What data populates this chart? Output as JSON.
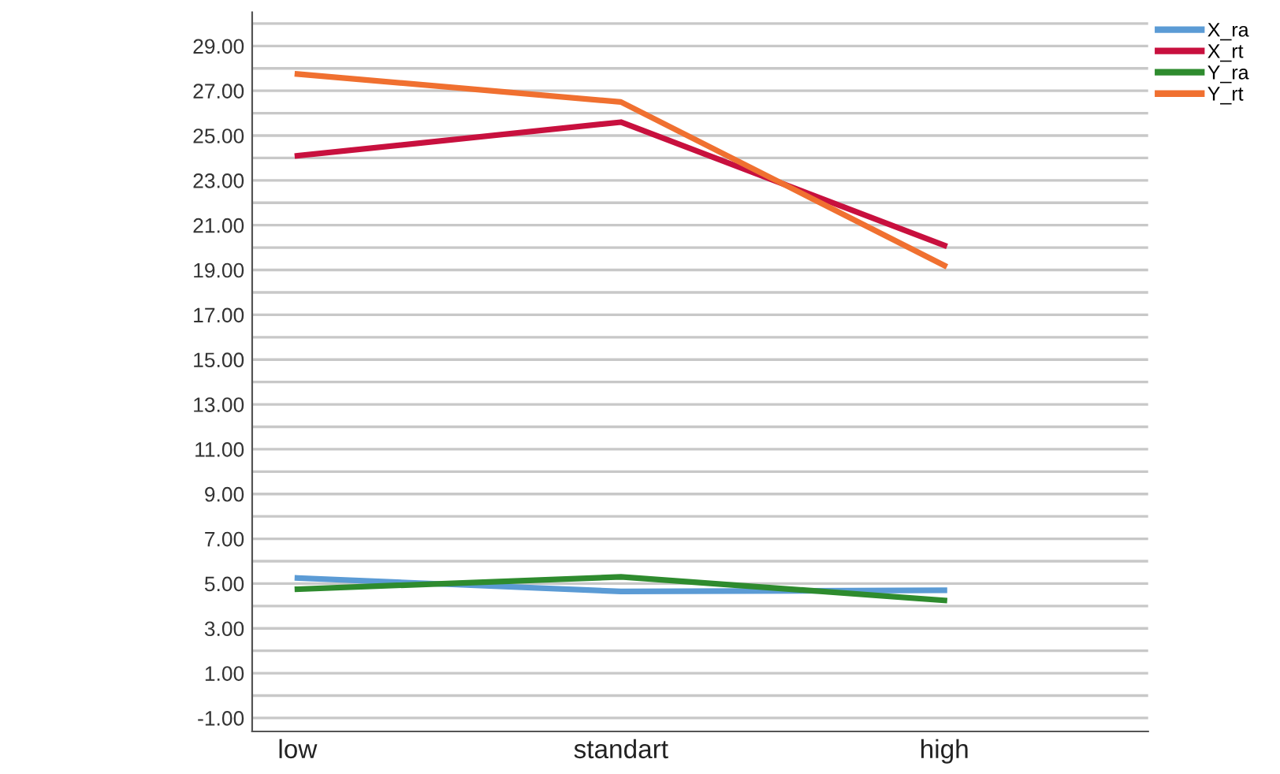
{
  "chart_data": {
    "type": "line",
    "categories": [
      "low",
      "standart",
      "high"
    ],
    "series": [
      {
        "name": "X_ra",
        "color": "#5b9bd5",
        "values": [
          5.25,
          4.65,
          4.7
        ]
      },
      {
        "name": "X_rt",
        "color": "#c8103e",
        "values": [
          24.1,
          25.6,
          20.1
        ]
      },
      {
        "name": "Y_ra",
        "color": "#2e8b2e",
        "values": [
          4.75,
          5.3,
          4.25
        ]
      },
      {
        "name": "Y_rt",
        "color": "#f07030",
        "values": [
          27.75,
          26.5,
          19.2
        ]
      }
    ],
    "ylim": [
      -1.6,
      30.5
    ],
    "yticks": [
      {
        "value": -1,
        "label": "-1.00"
      },
      {
        "value": 0,
        "label": null
      },
      {
        "value": 1,
        "label": "1.00"
      },
      {
        "value": 2,
        "label": null
      },
      {
        "value": 3,
        "label": "3.00"
      },
      {
        "value": 4,
        "label": null
      },
      {
        "value": 5,
        "label": "5.00"
      },
      {
        "value": 6,
        "label": null
      },
      {
        "value": 7,
        "label": "7.00"
      },
      {
        "value": 8,
        "label": null
      },
      {
        "value": 9,
        "label": "9.00"
      },
      {
        "value": 10,
        "label": null
      },
      {
        "value": 11,
        "label": "11.00"
      },
      {
        "value": 12,
        "label": null
      },
      {
        "value": 13,
        "label": "13.00"
      },
      {
        "value": 14,
        "label": null
      },
      {
        "value": 15,
        "label": "15.00"
      },
      {
        "value": 16,
        "label": null
      },
      {
        "value": 17,
        "label": "17.00"
      },
      {
        "value": 18,
        "label": null
      },
      {
        "value": 19,
        "label": "19.00"
      },
      {
        "value": 20,
        "label": null
      },
      {
        "value": 21,
        "label": "21.00"
      },
      {
        "value": 22,
        "label": null
      },
      {
        "value": 23,
        "label": "23.00"
      },
      {
        "value": 24,
        "label": null
      },
      {
        "value": 25,
        "label": "25.00"
      },
      {
        "value": 26,
        "label": null
      },
      {
        "value": 27,
        "label": "27.00"
      },
      {
        "value": 28,
        "label": null
      },
      {
        "value": 29,
        "label": "29.00"
      },
      {
        "value": 30,
        "label": null
      }
    ],
    "grid": "y",
    "legend": "top right",
    "marker": "none",
    "line_style": "solid"
  }
}
